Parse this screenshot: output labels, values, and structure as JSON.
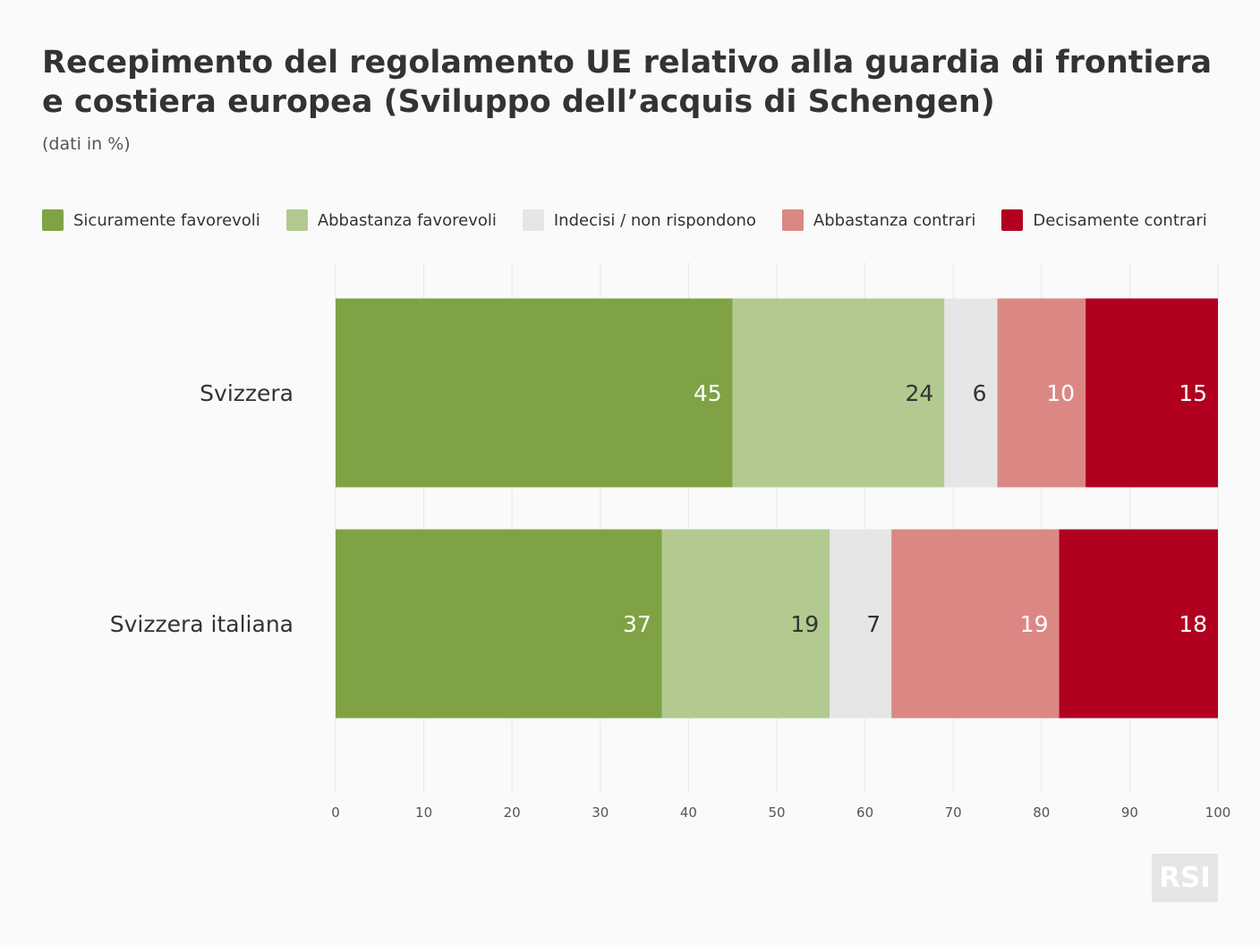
{
  "title_lines": [
    "Recepimento del regolamento UE relativo alla guardia di frontiera",
    "e costiera europea (Sviluppo dell’acquis di Schengen)"
  ],
  "subtitle": "(dati in %)",
  "logo_text": "RSI",
  "chart_data": {
    "type": "bar",
    "orientation": "horizontal",
    "stacked": true,
    "categories": [
      "Svizzera",
      "Svizzera italiana"
    ],
    "series": [
      {
        "name": "Sicuramente favorevoli",
        "color": "#7fa344",
        "label_color": "#ffffff",
        "values": [
          45,
          37
        ]
      },
      {
        "name": "Abbastanza favorevoli",
        "color": "#b2ca8f",
        "label_color": "#333333",
        "values": [
          24,
          19
        ]
      },
      {
        "name": "Indecisi / non rispondono",
        "color": "#e6e6e6",
        "label_color": "#333333",
        "values": [
          6,
          7
        ]
      },
      {
        "name": "Abbastanza contrari",
        "color": "#db8884",
        "label_color": "#ffffff",
        "values": [
          10,
          19
        ]
      },
      {
        "name": "Decisamente contrari",
        "color": "#b10020",
        "label_color": "#ffffff",
        "values": [
          15,
          18
        ]
      }
    ],
    "xlim": [
      0,
      100
    ],
    "xticks": [
      0,
      10,
      20,
      30,
      40,
      50,
      60,
      70,
      80,
      90,
      100
    ],
    "grid": true,
    "legend_position": "top"
  }
}
